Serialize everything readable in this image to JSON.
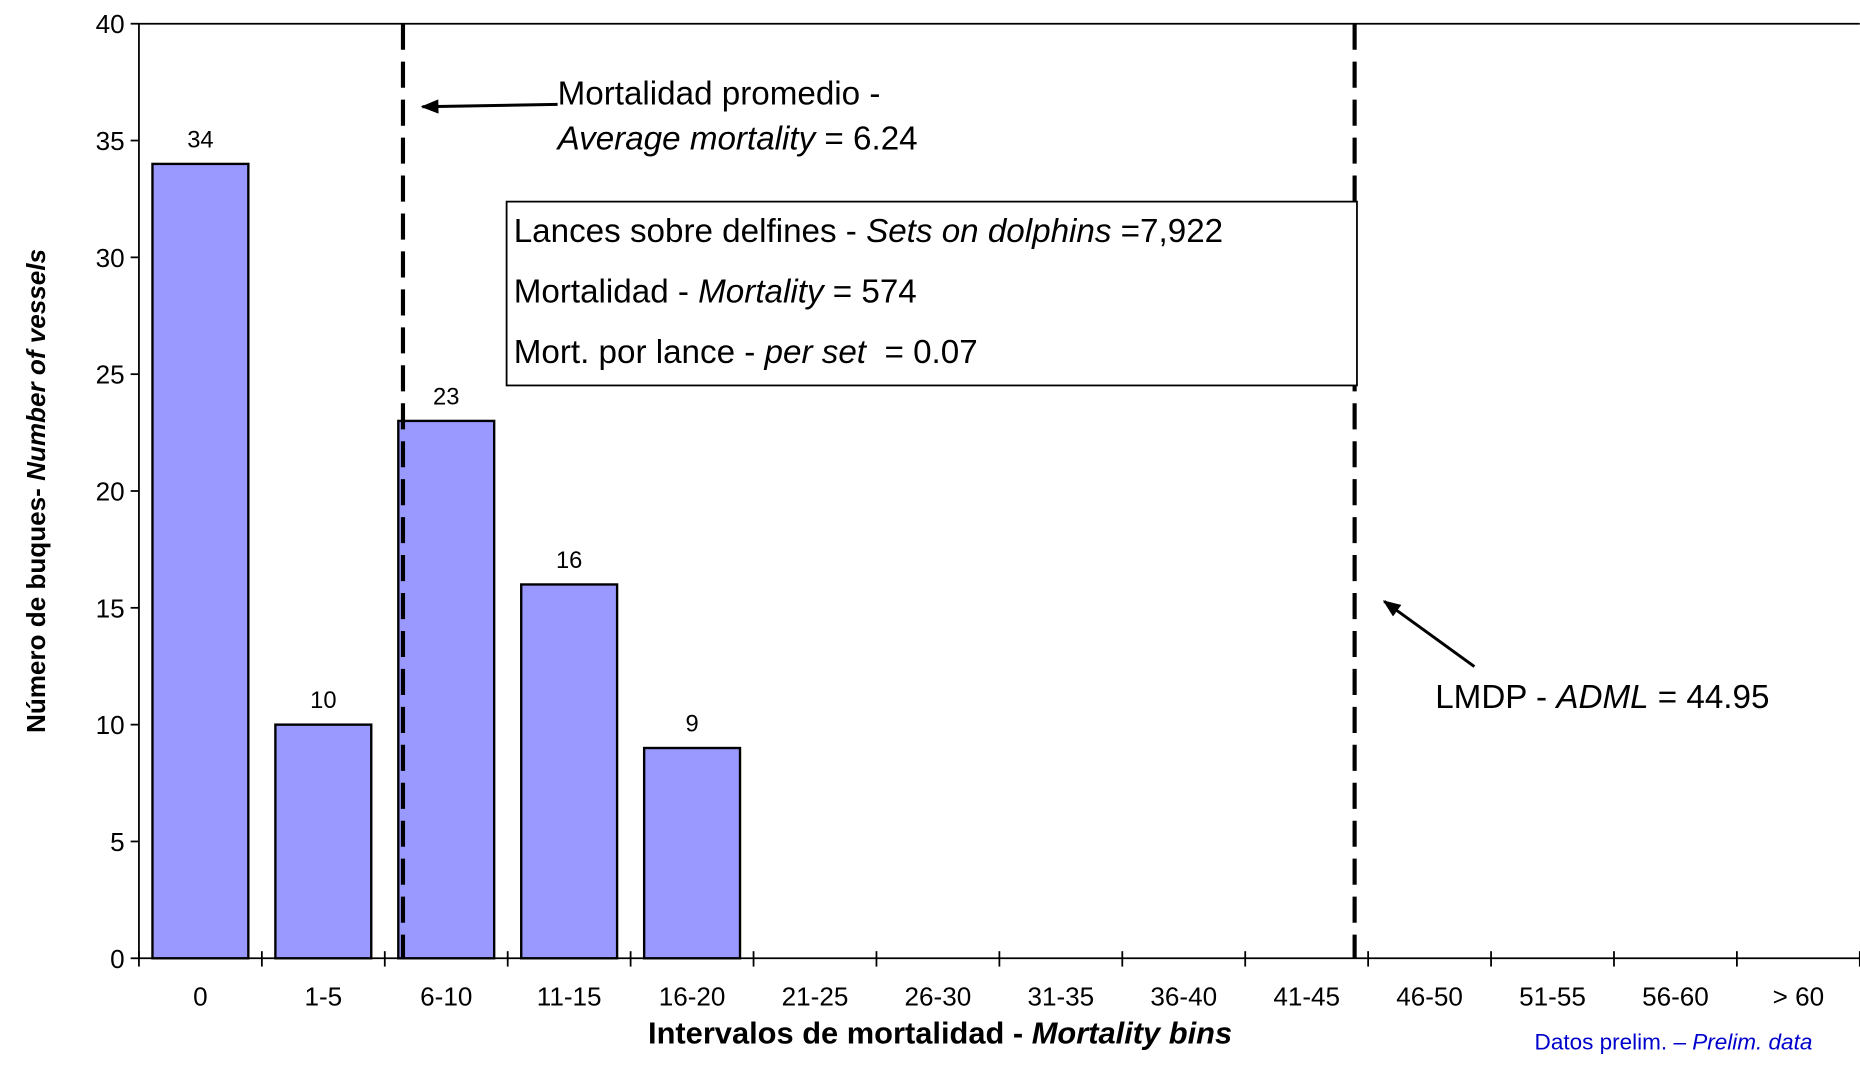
{
  "chart_data": {
    "type": "bar",
    "categories": [
      "0",
      "1-5",
      "6-10",
      "11-15",
      "16-20",
      "21-25",
      "26-30",
      "31-35",
      "36-40",
      "41-45",
      "46-50",
      "51-55",
      "56-60",
      "> 60"
    ],
    "values": [
      34,
      10,
      23,
      16,
      9,
      0,
      0,
      0,
      0,
      0,
      0,
      0,
      0,
      0
    ],
    "color": "#9999ff",
    "ylim": [
      0,
      40
    ],
    "yticks": [
      0,
      5,
      10,
      15,
      20,
      25,
      30,
      35,
      40
    ],
    "y_label": [
      {
        "text": "Número de buques- "
      },
      {
        "text": "Number of vessels",
        "italic": true
      }
    ],
    "x_label": [
      {
        "text": "Intervalos de mortalidad - "
      },
      {
        "text": "Mortality bins",
        "italic": true
      }
    ],
    "reference_lines": [
      {
        "value": 6.24,
        "label_lines": [
          [
            {
              "text": "Mortalidad promedio -"
            }
          ],
          [
            {
              "text": "Average mortality",
              "italic": true
            },
            {
              "text": " = 6.24"
            }
          ]
        ]
      },
      {
        "value": 44.95,
        "label_lines": [
          [
            {
              "text": "LMDP - "
            },
            {
              "text": "ADML",
              "italic": true
            },
            {
              "text": " = 44.95"
            }
          ]
        ]
      }
    ],
    "info_box": [
      [
        {
          "text": "Lances sobre delfines - "
        },
        {
          "text": "Sets on dolphins",
          "italic": true
        },
        {
          "text": " =7,922"
        }
      ],
      [
        {
          "text": "Mortalidad - "
        },
        {
          "text": "Mortality",
          "italic": true
        },
        {
          "text": " = 574"
        }
      ],
      [
        {
          "text": "Mort. por lance - "
        },
        {
          "text": "per set",
          "italic": true
        },
        {
          "text": "  = 0.07"
        }
      ]
    ],
    "footnote": [
      {
        "text": "Datos prelim. – "
      },
      {
        "text": "Prelim. data",
        "italic": true
      }
    ]
  }
}
